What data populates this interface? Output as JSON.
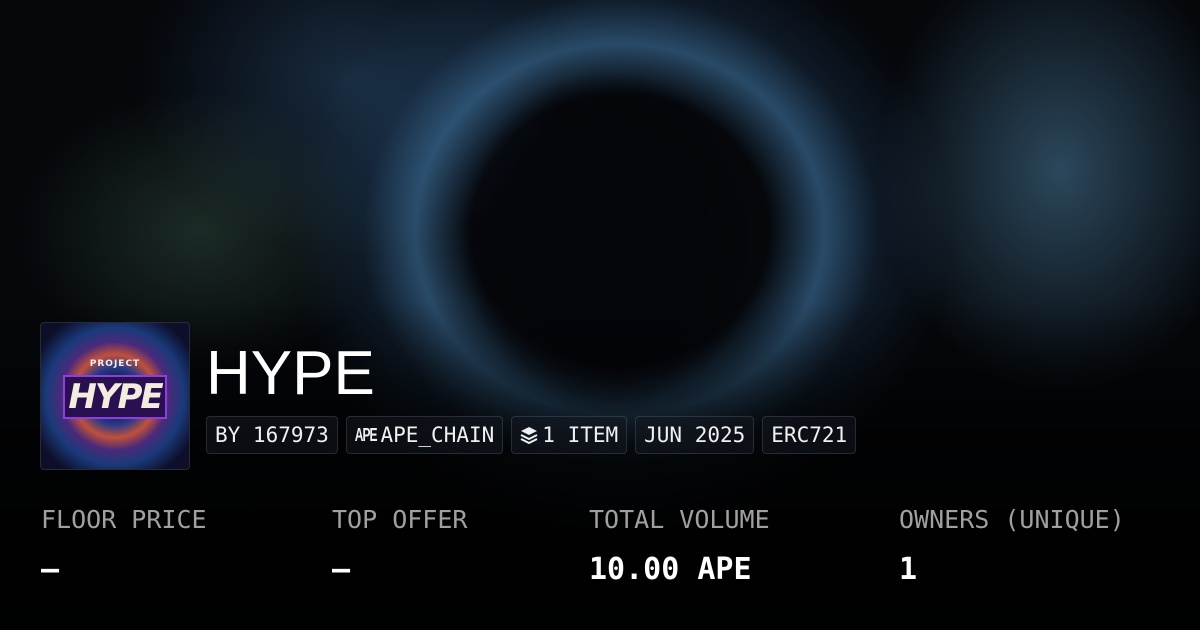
{
  "collection": {
    "name": "HYPE",
    "logo_text_top": "PROJECT",
    "logo_text_main": "HYPE"
  },
  "badges": [
    {
      "label": "BY 167973"
    },
    {
      "label": "APE_CHAIN",
      "icon": "apechain-icon",
      "icon_text": "APE"
    },
    {
      "label": "1 ITEM",
      "icon": "layers-icon"
    },
    {
      "label": "JUN 2025"
    },
    {
      "label": "ERC721"
    }
  ],
  "stats": [
    {
      "label": "FLOOR PRICE",
      "value": "–"
    },
    {
      "label": "TOP OFFER",
      "value": "–"
    },
    {
      "label": "TOTAL VOLUME",
      "value": "10.00 APE"
    },
    {
      "label": "OWNERS (UNIQUE)",
      "value": "1"
    }
  ]
}
